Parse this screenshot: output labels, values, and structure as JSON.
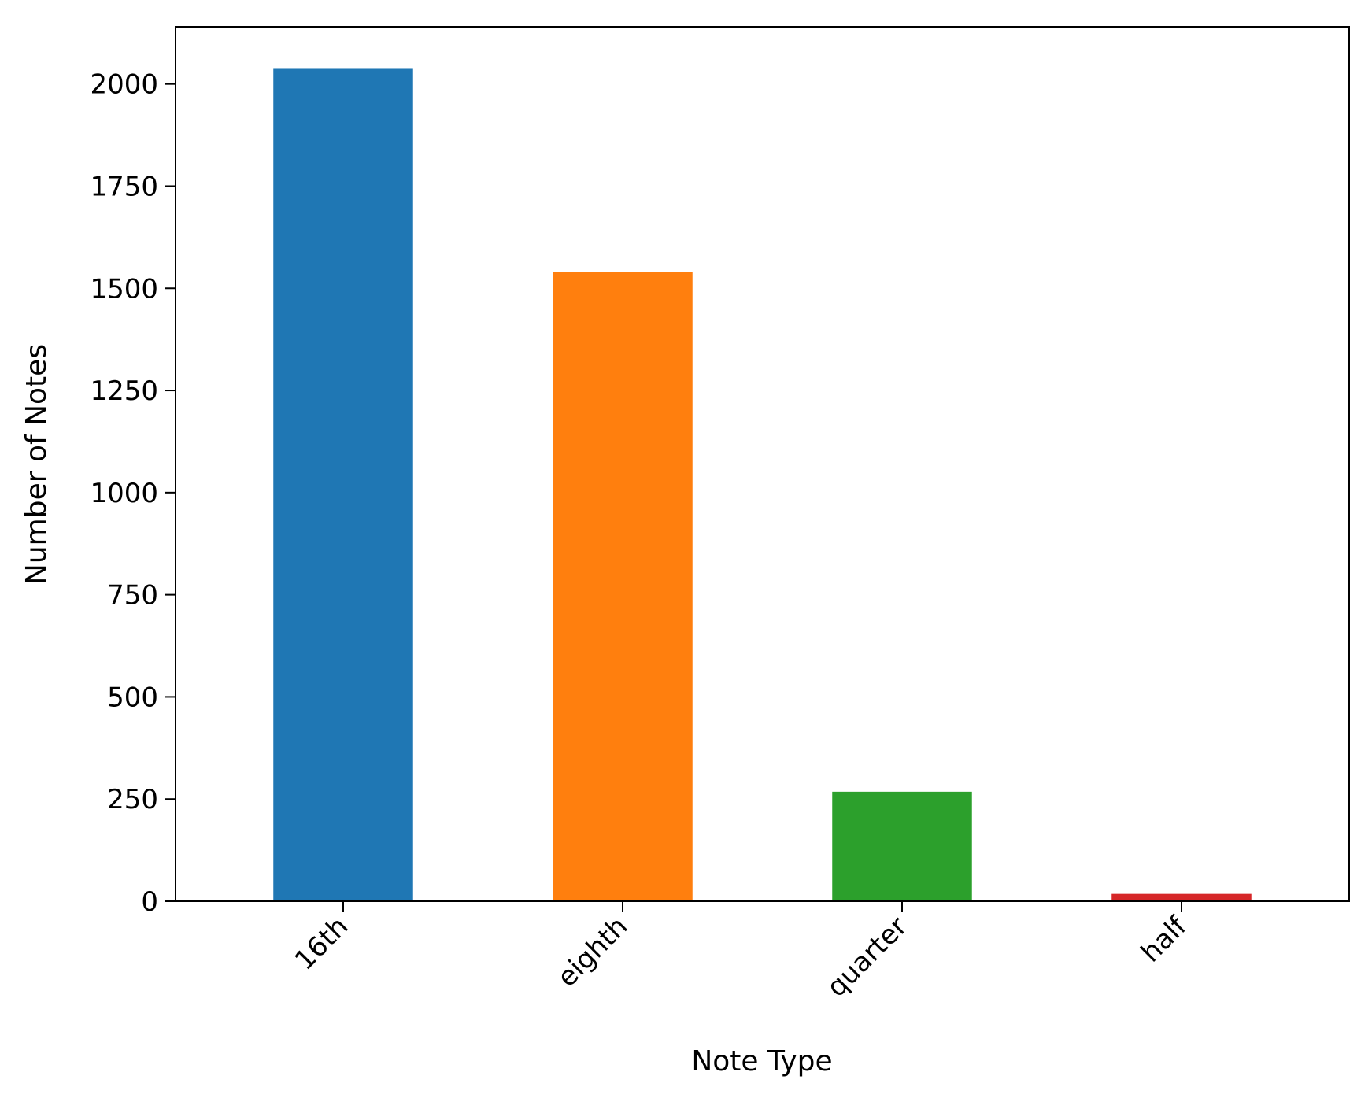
{
  "chart_data": {
    "type": "bar",
    "title": "",
    "xlabel": "Note Type",
    "ylabel": "Number of Notes",
    "categories": [
      "16th",
      "eighth",
      "quarter",
      "half"
    ],
    "values": [
      2037,
      1540,
      268,
      18
    ],
    "colors": [
      "#1f77b4",
      "#ff7f0e",
      "#2ca02c",
      "#d62728"
    ],
    "ylim": [
      0,
      2140
    ],
    "yticks": [
      0,
      250,
      500,
      750,
      1000,
      1250,
      1500,
      1750,
      2000
    ],
    "xtick_rotation_deg": 45,
    "grid": false,
    "legend": "none"
  }
}
